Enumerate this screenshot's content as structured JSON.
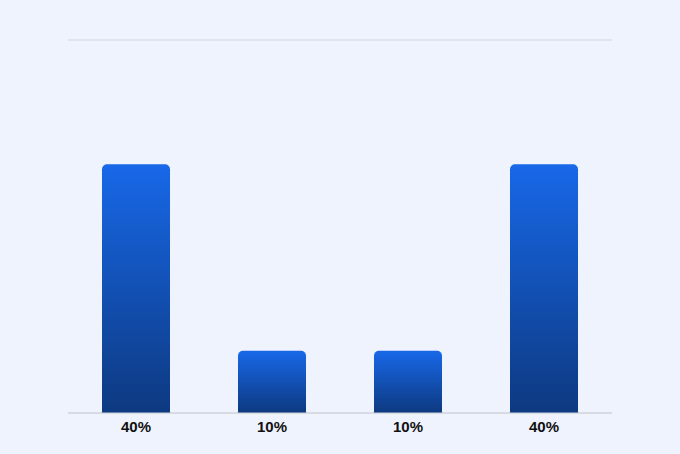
{
  "chart_data": {
    "type": "bar",
    "categories": [
      "40%",
      "10%",
      "10%",
      "40%"
    ],
    "values": [
      40,
      10,
      10,
      40
    ],
    "color": "#1868e8",
    "ylim": [
      0,
      60
    ],
    "yticks": [
      0,
      10,
      20,
      30,
      40,
      50
    ],
    "grid": true,
    "tick_labels": "x"
  }
}
